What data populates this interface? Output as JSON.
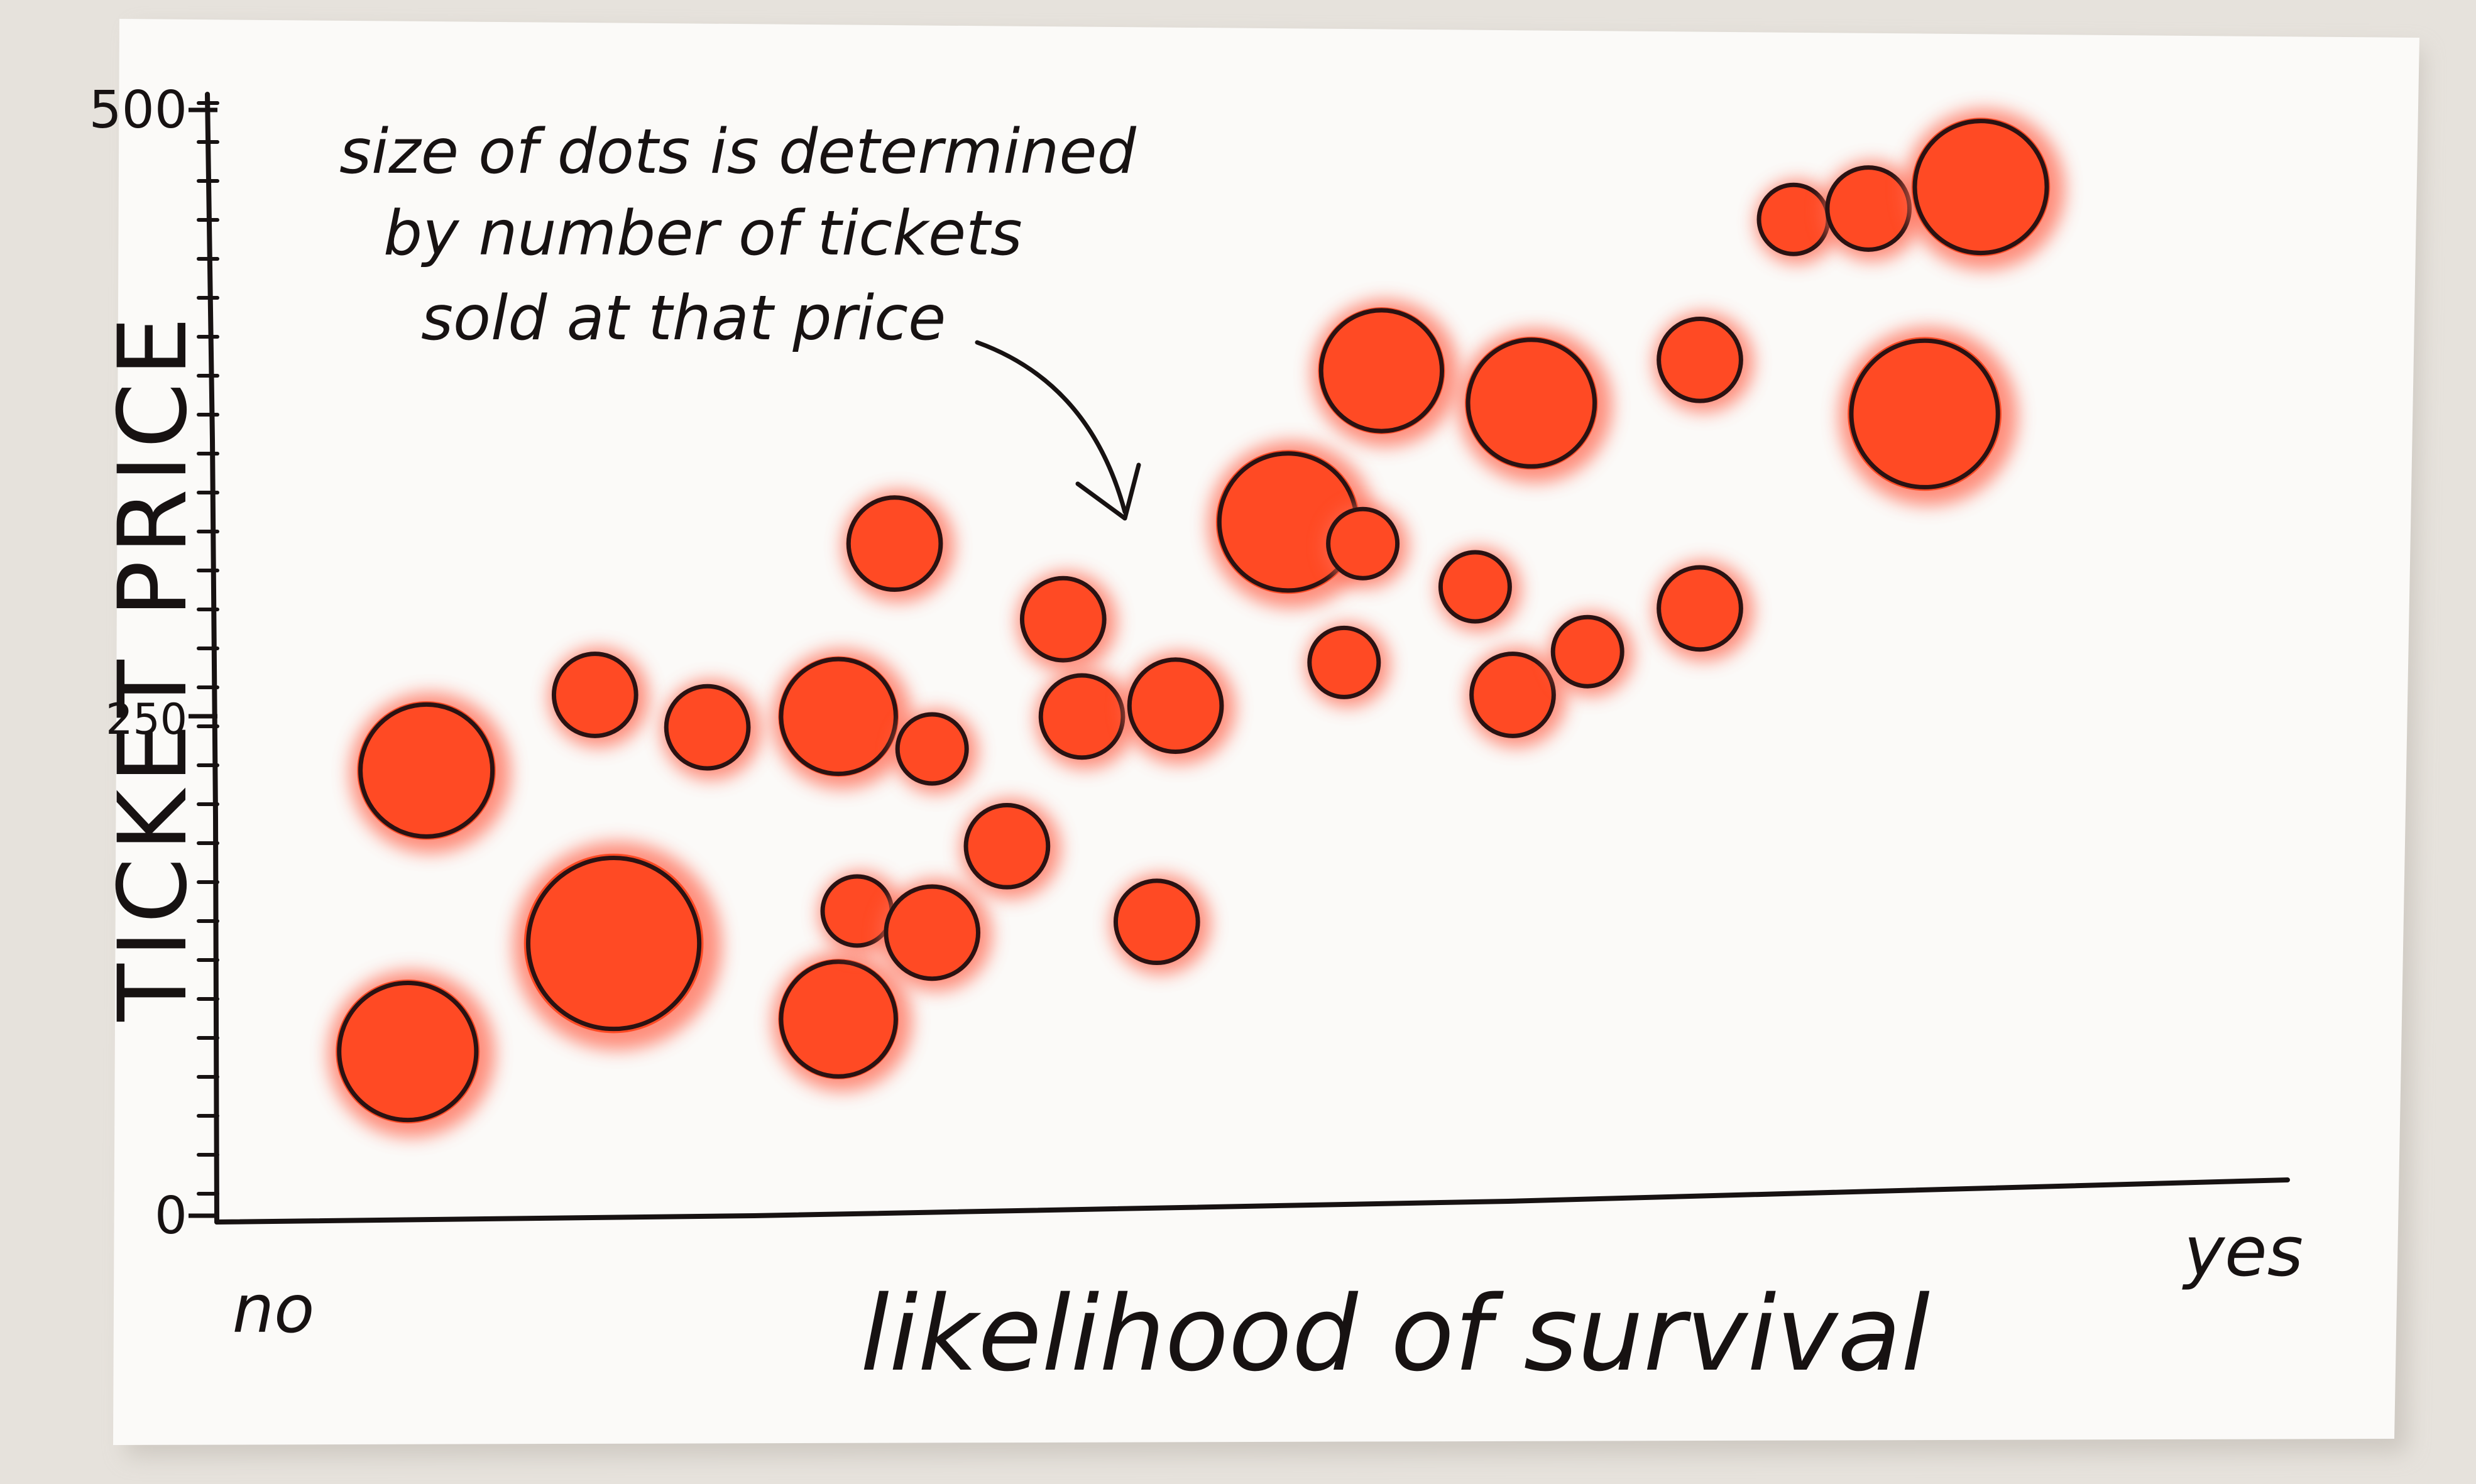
{
  "chart_data": {
    "type": "scatter",
    "title": "",
    "ylabel": "TICKET PRICE",
    "xlabel": "likelihood of survival",
    "x_tick_labels": {
      "left": "no",
      "right": "yes"
    },
    "y_ticks": [
      {
        "value": 0,
        "label": "0"
      },
      {
        "value": 250,
        "label": "250"
      },
      {
        "value": 500,
        "label": "500"
      }
    ],
    "xlim": [
      0,
      1
    ],
    "ylim": [
      0,
      500
    ],
    "grid": false,
    "annotation": {
      "lines": [
        "size of dots is determined",
        "by number of tickets",
        "sold at that price"
      ],
      "points_to": "one of the larger dots in the middle of the chart"
    },
    "size_encoding": "number of tickets sold at that price",
    "colors": {
      "fill": "#ff4a24",
      "halo": "#ff6a52",
      "outline": "#2a1212",
      "ink": "#171212",
      "paper": "#fbfaf8"
    },
    "points": [
      {
        "x": 0.07,
        "y": 190,
        "size": 9
      },
      {
        "x": 0.06,
        "y": 60,
        "size": 10
      },
      {
        "x": 0.17,
        "y": 110,
        "size": 18
      },
      {
        "x": 0.29,
        "y": 75,
        "size": 6
      },
      {
        "x": 0.16,
        "y": 225,
        "size": 2
      },
      {
        "x": 0.22,
        "y": 210,
        "size": 2
      },
      {
        "x": 0.29,
        "y": 215,
        "size": 6
      },
      {
        "x": 0.32,
        "y": 295,
        "size": 3
      },
      {
        "x": 0.34,
        "y": 200,
        "size": 1
      },
      {
        "x": 0.3,
        "y": 125,
        "size": 1
      },
      {
        "x": 0.34,
        "y": 115,
        "size": 3
      },
      {
        "x": 0.38,
        "y": 155,
        "size": 2
      },
      {
        "x": 0.41,
        "y": 260,
        "size": 2
      },
      {
        "x": 0.42,
        "y": 215,
        "size": 2
      },
      {
        "x": 0.47,
        "y": 220,
        "size": 3
      },
      {
        "x": 0.46,
        "y": 120,
        "size": 2
      },
      {
        "x": 0.53,
        "y": 305,
        "size": 10
      },
      {
        "x": 0.58,
        "y": 375,
        "size": 7
      },
      {
        "x": 0.57,
        "y": 295,
        "size": 1
      },
      {
        "x": 0.56,
        "y": 240,
        "size": 1
      },
      {
        "x": 0.63,
        "y": 275,
        "size": 1
      },
      {
        "x": 0.66,
        "y": 360,
        "size": 8
      },
      {
        "x": 0.65,
        "y": 225,
        "size": 2
      },
      {
        "x": 0.69,
        "y": 245,
        "size": 1
      },
      {
        "x": 0.75,
        "y": 265,
        "size": 2
      },
      {
        "x": 0.75,
        "y": 380,
        "size": 2
      },
      {
        "x": 0.8,
        "y": 445,
        "size": 1
      },
      {
        "x": 0.84,
        "y": 450,
        "size": 2
      },
      {
        "x": 0.87,
        "y": 355,
        "size": 12
      },
      {
        "x": 0.9,
        "y": 460,
        "size": 9
      }
    ]
  }
}
